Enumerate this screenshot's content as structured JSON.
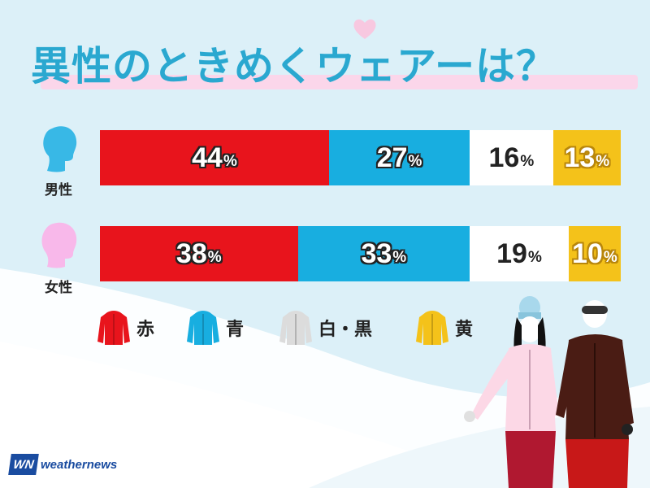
{
  "title": "異性のときめくウェアーは？",
  "colors": {
    "red": "#e8141c",
    "blue": "#18aee0",
    "white": "#ffffff",
    "yellow": "#f4c21a",
    "heart": "#f8c8e0",
    "male_icon": "#38b8e6",
    "female_icon": "#f8b8ea"
  },
  "legend": [
    {
      "label": "赤",
      "color": "#e8141c",
      "icon": "jacket-icon"
    },
    {
      "label": "青",
      "color": "#18aee0",
      "icon": "jacket-icon"
    },
    {
      "label": "白・黒",
      "color": "#dcdcdc",
      "icon": "jacket-icon"
    },
    {
      "label": "黄",
      "color": "#f4c21a",
      "icon": "jacket-icon"
    }
  ],
  "logo": {
    "mark": "WN",
    "text": "weathernews"
  },
  "chart_data": {
    "type": "bar",
    "stacked": true,
    "orientation": "horizontal",
    "title": "異性のときめくウェアーは？",
    "categories": [
      "男性",
      "女性"
    ],
    "unit": "%",
    "series": [
      {
        "name": "赤",
        "color": "#e8141c",
        "values": [
          44,
          38
        ]
      },
      {
        "name": "青",
        "color": "#18aee0",
        "values": [
          27,
          33
        ]
      },
      {
        "name": "白・黒",
        "color": "#ffffff",
        "values": [
          16,
          19
        ]
      },
      {
        "name": "黄",
        "color": "#f4c21a",
        "values": [
          13,
          10
        ]
      }
    ],
    "xlim": [
      0,
      100
    ],
    "grid": false,
    "legend_position": "bottom"
  }
}
